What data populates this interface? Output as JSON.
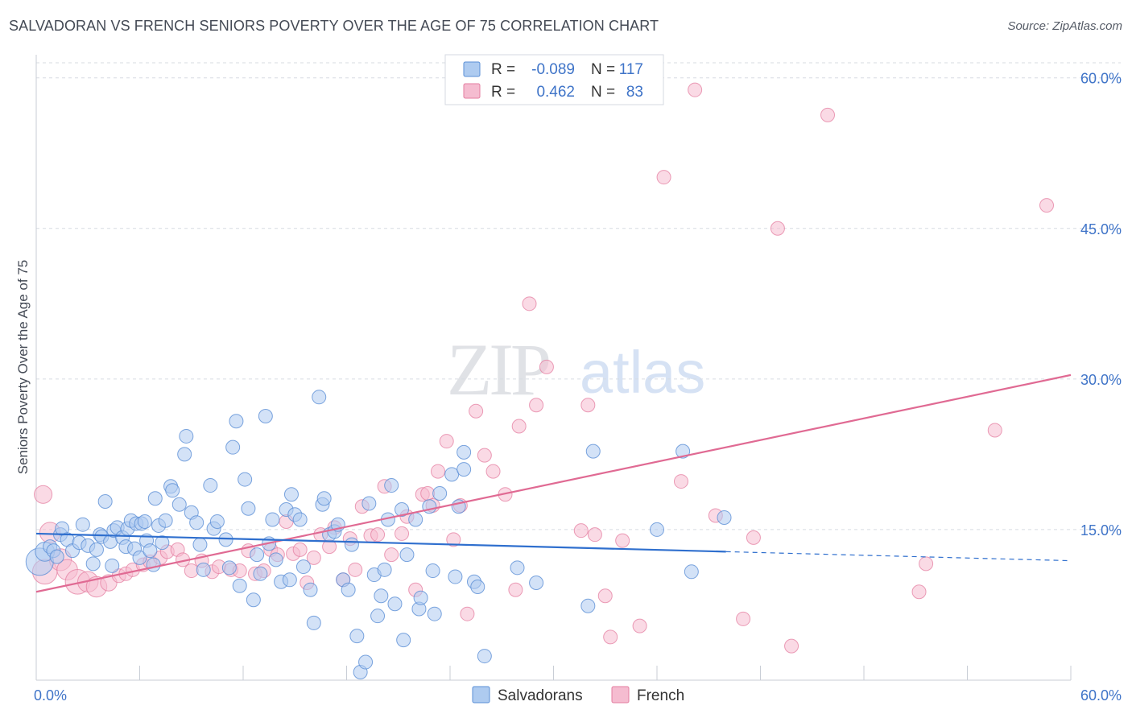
{
  "header": {
    "title": "SALVADORAN VS FRENCH SENIORS POVERTY OVER THE AGE OF 75 CORRELATION CHART",
    "source": "Source: ZipAtlas.com"
  },
  "watermark": {
    "zip": "ZIP",
    "atlas": "atlas"
  },
  "legend": {
    "rows": [
      {
        "r_label": "R = ",
        "r_value": "-0.089",
        "n_label": "N = ",
        "n_value": "117"
      },
      {
        "r_label": "R = ",
        "r_value": "0.462",
        "n_label": "N = ",
        "n_value": "83"
      }
    ]
  },
  "colors": {
    "salvadorans_fill": "#aecbf0",
    "salvadorans_stroke": "#5b8fd6",
    "salvadorans_line": "#2f6fce",
    "french_fill": "#f5bcd0",
    "french_stroke": "#e47ea0",
    "french_line": "#e06a93",
    "grid": "#d7dbe2",
    "tick_text": "#3f74c8"
  },
  "chart_data": {
    "type": "scatter",
    "title": "SALVADORAN VS FRENCH SENIORS POVERTY OVER THE AGE OF 75 CORRELATION CHART",
    "xlabel": "",
    "ylabel": "Seniors Poverty Over the Age of 75",
    "xlim": [
      0,
      60
    ],
    "ylim": [
      0,
      61.5
    ],
    "x_tick_labels": [
      "0.0%",
      "60.0%"
    ],
    "y_ticks": [
      15,
      30,
      45,
      60
    ],
    "y_tick_labels": [
      "15.0%",
      "30.0%",
      "45.0%",
      "60.0%"
    ],
    "grid": true,
    "legend_placement": "top-center",
    "series": [
      {
        "name": "Salvadorans",
        "r": -0.089,
        "n": 117,
        "trend": {
          "x0": 0,
          "y0": 14.6,
          "x1": 40,
          "y1": 12.8,
          "dashed_to_x": 60,
          "dashed_to_y": 11.9
        },
        "points": [
          [
            0.2,
            11.8,
            2.0
          ],
          [
            0.5,
            12.8,
            1.4
          ],
          [
            0.8,
            13.3,
            1.0
          ],
          [
            1.0,
            12.9,
            1.0
          ],
          [
            1.2,
            12.3,
            1.0
          ],
          [
            1.4,
            14.5,
            1.0
          ],
          [
            1.5,
            15.1,
            1.0
          ],
          [
            1.8,
            14.0,
            1.0
          ],
          [
            2.1,
            12.9,
            1.0
          ],
          [
            2.5,
            13.7,
            1.0
          ],
          [
            2.7,
            15.5,
            1.0
          ],
          [
            3.0,
            13.4,
            1.0
          ],
          [
            3.3,
            11.6,
            1.0
          ],
          [
            3.5,
            13.0,
            1.0
          ],
          [
            3.7,
            14.5,
            1.0
          ],
          [
            3.8,
            14.3,
            1.0
          ],
          [
            4.0,
            17.8,
            1.0
          ],
          [
            4.3,
            13.8,
            1.0
          ],
          [
            4.4,
            11.4,
            1.0
          ],
          [
            4.5,
            14.9,
            1.0
          ],
          [
            4.7,
            15.2,
            1.0
          ],
          [
            5.0,
            14.2,
            1.0
          ],
          [
            5.2,
            13.3,
            1.0
          ],
          [
            5.3,
            15.1,
            1.0
          ],
          [
            5.5,
            15.9,
            1.0
          ],
          [
            5.7,
            13.1,
            1.0
          ],
          [
            5.8,
            15.6,
            1.0
          ],
          [
            6.0,
            12.2,
            1.0
          ],
          [
            6.1,
            15.6,
            1.0
          ],
          [
            6.3,
            15.8,
            1.0
          ],
          [
            6.4,
            13.9,
            1.0
          ],
          [
            6.6,
            12.9,
            1.0
          ],
          [
            6.8,
            11.5,
            1.0
          ],
          [
            6.9,
            18.1,
            1.0
          ],
          [
            7.1,
            15.4,
            1.0
          ],
          [
            7.3,
            13.7,
            1.0
          ],
          [
            7.5,
            15.9,
            1.0
          ],
          [
            7.8,
            19.3,
            1.0
          ],
          [
            7.9,
            18.9,
            1.0
          ],
          [
            8.3,
            17.5,
            1.0
          ],
          [
            8.6,
            22.5,
            1.0
          ],
          [
            8.7,
            24.3,
            1.0
          ],
          [
            9.0,
            16.7,
            1.0
          ],
          [
            9.3,
            15.7,
            1.0
          ],
          [
            9.5,
            13.5,
            1.0
          ],
          [
            9.7,
            11.0,
            1.0
          ],
          [
            10.1,
            19.4,
            1.0
          ],
          [
            10.3,
            15.1,
            1.0
          ],
          [
            10.5,
            15.8,
            1.0
          ],
          [
            11.0,
            14.0,
            1.0
          ],
          [
            11.2,
            11.2,
            1.0
          ],
          [
            11.4,
            23.2,
            1.0
          ],
          [
            11.6,
            25.8,
            1.0
          ],
          [
            11.8,
            9.4,
            1.0
          ],
          [
            12.1,
            20.0,
            1.0
          ],
          [
            12.3,
            17.1,
            1.0
          ],
          [
            12.6,
            8.0,
            1.0
          ],
          [
            12.8,
            12.5,
            1.0
          ],
          [
            13.0,
            10.6,
            1.0
          ],
          [
            13.3,
            26.3,
            1.0
          ],
          [
            13.5,
            13.6,
            1.0
          ],
          [
            13.7,
            16.0,
            1.0
          ],
          [
            13.9,
            12.0,
            1.0
          ],
          [
            14.2,
            9.8,
            1.0
          ],
          [
            14.5,
            17.0,
            1.0
          ],
          [
            14.7,
            10.0,
            1.0
          ],
          [
            14.8,
            18.5,
            1.0
          ],
          [
            15.0,
            16.5,
            1.0
          ],
          [
            15.3,
            16.0,
            1.0
          ],
          [
            15.5,
            11.3,
            1.0
          ],
          [
            15.9,
            9.0,
            1.0
          ],
          [
            16.1,
            5.7,
            1.0
          ],
          [
            16.4,
            28.2,
            1.0
          ],
          [
            16.6,
            17.5,
            1.0
          ],
          [
            16.7,
            18.1,
            1.0
          ],
          [
            17.0,
            14.5,
            1.0
          ],
          [
            17.3,
            14.8,
            1.0
          ],
          [
            17.5,
            15.5,
            1.0
          ],
          [
            17.8,
            10.0,
            1.0
          ],
          [
            18.1,
            9.0,
            1.0
          ],
          [
            18.3,
            13.5,
            1.0
          ],
          [
            18.6,
            4.4,
            1.0
          ],
          [
            18.8,
            0.8,
            1.0
          ],
          [
            19.1,
            1.8,
            1.0
          ],
          [
            19.3,
            17.6,
            1.0
          ],
          [
            19.6,
            10.5,
            1.0
          ],
          [
            19.8,
            6.4,
            1.0
          ],
          [
            20.0,
            8.4,
            1.0
          ],
          [
            20.2,
            11.0,
            1.0
          ],
          [
            20.4,
            16.0,
            1.0
          ],
          [
            20.6,
            19.4,
            1.0
          ],
          [
            20.8,
            7.6,
            1.0
          ],
          [
            21.2,
            17.0,
            1.0
          ],
          [
            21.3,
            4.0,
            1.0
          ],
          [
            21.5,
            12.5,
            1.0
          ],
          [
            22.0,
            16.0,
            1.0
          ],
          [
            22.2,
            7.1,
            1.0
          ],
          [
            22.3,
            8.2,
            1.0
          ],
          [
            22.8,
            17.3,
            1.0
          ],
          [
            23.0,
            10.9,
            1.0
          ],
          [
            23.1,
            6.6,
            1.0
          ],
          [
            23.4,
            18.6,
            1.0
          ],
          [
            24.1,
            20.5,
            1.0
          ],
          [
            24.3,
            10.3,
            1.0
          ],
          [
            24.5,
            17.3,
            1.0
          ],
          [
            24.8,
            22.7,
            1.0
          ],
          [
            24.8,
            21.0,
            1.0
          ],
          [
            25.4,
            9.8,
            1.0
          ],
          [
            25.6,
            9.3,
            1.0
          ],
          [
            26.0,
            2.4,
            1.0
          ],
          [
            27.9,
            11.2,
            1.0
          ],
          [
            29.0,
            9.7,
            1.0
          ],
          [
            32.0,
            7.4,
            1.0
          ],
          [
            32.3,
            22.8,
            1.0
          ],
          [
            36.0,
            15.0,
            1.0
          ],
          [
            37.5,
            22.8,
            1.0
          ],
          [
            38.0,
            10.8,
            1.0
          ],
          [
            39.9,
            16.2,
            1.0
          ]
        ]
      },
      {
        "name": "French",
        "r": 0.462,
        "n": 83,
        "trend": {
          "x0": 0,
          "y0": 8.8,
          "x1": 60,
          "y1": 30.4
        },
        "points": [
          [
            0.4,
            18.5,
            1.3
          ],
          [
            0.5,
            10.8,
            1.8
          ],
          [
            0.8,
            14.7,
            1.5
          ],
          [
            1.4,
            12.0,
            1.6
          ],
          [
            1.8,
            11.0,
            1.5
          ],
          [
            2.4,
            9.8,
            1.8
          ],
          [
            3.0,
            9.8,
            1.5
          ],
          [
            3.5,
            9.3,
            1.5
          ],
          [
            4.2,
            9.7,
            1.2
          ],
          [
            4.8,
            10.4,
            1.0
          ],
          [
            5.2,
            10.6,
            1.0
          ],
          [
            5.6,
            11.0,
            1.0
          ],
          [
            6.2,
            11.5,
            1.0
          ],
          [
            6.6,
            11.8,
            1.0
          ],
          [
            7.2,
            12.2,
            1.0
          ],
          [
            7.6,
            12.8,
            1.0
          ],
          [
            8.2,
            13.0,
            1.0
          ],
          [
            8.5,
            12.0,
            1.0
          ],
          [
            9.0,
            10.9,
            1.0
          ],
          [
            9.6,
            11.9,
            1.0
          ],
          [
            10.2,
            10.8,
            1.0
          ],
          [
            10.6,
            11.3,
            1.0
          ],
          [
            11.3,
            11.0,
            1.0
          ],
          [
            11.8,
            10.9,
            1.0
          ],
          [
            12.3,
            12.9,
            1.0
          ],
          [
            12.7,
            10.6,
            1.0
          ],
          [
            13.2,
            10.9,
            1.0
          ],
          [
            13.6,
            13.0,
            1.0
          ],
          [
            14.0,
            12.5,
            1.0
          ],
          [
            14.5,
            15.8,
            1.0
          ],
          [
            14.9,
            12.6,
            1.0
          ],
          [
            15.3,
            13.0,
            1.0
          ],
          [
            15.7,
            9.7,
            1.0
          ],
          [
            16.1,
            12.2,
            1.0
          ],
          [
            16.5,
            14.5,
            1.0
          ],
          [
            17.0,
            13.3,
            1.0
          ],
          [
            17.3,
            15.2,
            1.0
          ],
          [
            17.8,
            10.0,
            1.0
          ],
          [
            18.2,
            14.1,
            1.0
          ],
          [
            18.5,
            11.0,
            1.0
          ],
          [
            18.9,
            17.3,
            1.0
          ],
          [
            19.4,
            14.4,
            1.0
          ],
          [
            19.8,
            14.5,
            1.0
          ],
          [
            20.2,
            19.3,
            1.0
          ],
          [
            20.6,
            12.5,
            1.0
          ],
          [
            21.2,
            14.6,
            1.0
          ],
          [
            21.5,
            16.3,
            1.0
          ],
          [
            22.0,
            9.0,
            1.0
          ],
          [
            22.4,
            18.5,
            1.0
          ],
          [
            22.7,
            18.6,
            1.0
          ],
          [
            23.0,
            17.4,
            1.0
          ],
          [
            23.3,
            20.8,
            1.0
          ],
          [
            23.8,
            23.8,
            1.0
          ],
          [
            24.2,
            14.0,
            1.0
          ],
          [
            24.6,
            17.4,
            1.0
          ],
          [
            25.0,
            6.6,
            1.0
          ],
          [
            25.5,
            26.8,
            1.0
          ],
          [
            26.0,
            22.4,
            1.0
          ],
          [
            26.5,
            20.8,
            1.0
          ],
          [
            27.2,
            18.5,
            1.0
          ],
          [
            27.8,
            9.0,
            1.0
          ],
          [
            28.0,
            25.3,
            1.0
          ],
          [
            28.6,
            37.5,
            1.0
          ],
          [
            29.0,
            27.4,
            1.0
          ],
          [
            29.6,
            31.2,
            1.0
          ],
          [
            31.6,
            14.9,
            1.0
          ],
          [
            32.0,
            27.4,
            1.0
          ],
          [
            32.4,
            14.5,
            1.0
          ],
          [
            33.0,
            8.4,
            1.0
          ],
          [
            33.3,
            4.3,
            1.0
          ],
          [
            34.0,
            13.9,
            1.0
          ],
          [
            35.0,
            5.4,
            1.0
          ],
          [
            36.4,
            50.1,
            1.0
          ],
          [
            37.4,
            19.8,
            1.0
          ],
          [
            38.2,
            58.8,
            1.0
          ],
          [
            39.4,
            16.4,
            1.0
          ],
          [
            41.0,
            6.1,
            1.0
          ],
          [
            41.6,
            14.2,
            1.0
          ],
          [
            43.0,
            45.0,
            1.0
          ],
          [
            43.8,
            3.4,
            1.0
          ],
          [
            45.9,
            56.3,
            1.0
          ],
          [
            51.2,
            8.8,
            1.0
          ],
          [
            51.6,
            11.6,
            1.0
          ],
          [
            55.6,
            24.9,
            1.0
          ],
          [
            58.6,
            47.3,
            1.0
          ]
        ]
      }
    ]
  }
}
